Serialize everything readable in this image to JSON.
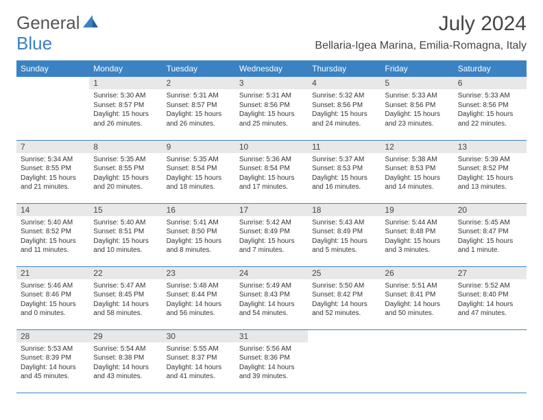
{
  "logo": {
    "general": "General",
    "blue": "Blue"
  },
  "header": {
    "title": "July 2024",
    "location": "Bellaria-Igea Marina, Emilia-Romagna, Italy"
  },
  "days_of_week": [
    "Sunday",
    "Monday",
    "Tuesday",
    "Wednesday",
    "Thursday",
    "Friday",
    "Saturday"
  ],
  "colors": {
    "header_bg": "#3b82c4",
    "day_num_bg": "#e8e8e8",
    "border": "#3b82c4",
    "logo_blue": "#3b7fc4"
  },
  "weeks": [
    [
      null,
      {
        "num": "1",
        "sunrise": "Sunrise: 5:30 AM",
        "sunset": "Sunset: 8:57 PM",
        "daylight": "Daylight: 15 hours and 26 minutes."
      },
      {
        "num": "2",
        "sunrise": "Sunrise: 5:31 AM",
        "sunset": "Sunset: 8:57 PM",
        "daylight": "Daylight: 15 hours and 26 minutes."
      },
      {
        "num": "3",
        "sunrise": "Sunrise: 5:31 AM",
        "sunset": "Sunset: 8:56 PM",
        "daylight": "Daylight: 15 hours and 25 minutes."
      },
      {
        "num": "4",
        "sunrise": "Sunrise: 5:32 AM",
        "sunset": "Sunset: 8:56 PM",
        "daylight": "Daylight: 15 hours and 24 minutes."
      },
      {
        "num": "5",
        "sunrise": "Sunrise: 5:33 AM",
        "sunset": "Sunset: 8:56 PM",
        "daylight": "Daylight: 15 hours and 23 minutes."
      },
      {
        "num": "6",
        "sunrise": "Sunrise: 5:33 AM",
        "sunset": "Sunset: 8:56 PM",
        "daylight": "Daylight: 15 hours and 22 minutes."
      }
    ],
    [
      {
        "num": "7",
        "sunrise": "Sunrise: 5:34 AM",
        "sunset": "Sunset: 8:55 PM",
        "daylight": "Daylight: 15 hours and 21 minutes."
      },
      {
        "num": "8",
        "sunrise": "Sunrise: 5:35 AM",
        "sunset": "Sunset: 8:55 PM",
        "daylight": "Daylight: 15 hours and 20 minutes."
      },
      {
        "num": "9",
        "sunrise": "Sunrise: 5:35 AM",
        "sunset": "Sunset: 8:54 PM",
        "daylight": "Daylight: 15 hours and 18 minutes."
      },
      {
        "num": "10",
        "sunrise": "Sunrise: 5:36 AM",
        "sunset": "Sunset: 8:54 PM",
        "daylight": "Daylight: 15 hours and 17 minutes."
      },
      {
        "num": "11",
        "sunrise": "Sunrise: 5:37 AM",
        "sunset": "Sunset: 8:53 PM",
        "daylight": "Daylight: 15 hours and 16 minutes."
      },
      {
        "num": "12",
        "sunrise": "Sunrise: 5:38 AM",
        "sunset": "Sunset: 8:53 PM",
        "daylight": "Daylight: 15 hours and 14 minutes."
      },
      {
        "num": "13",
        "sunrise": "Sunrise: 5:39 AM",
        "sunset": "Sunset: 8:52 PM",
        "daylight": "Daylight: 15 hours and 13 minutes."
      }
    ],
    [
      {
        "num": "14",
        "sunrise": "Sunrise: 5:40 AM",
        "sunset": "Sunset: 8:52 PM",
        "daylight": "Daylight: 15 hours and 11 minutes."
      },
      {
        "num": "15",
        "sunrise": "Sunrise: 5:40 AM",
        "sunset": "Sunset: 8:51 PM",
        "daylight": "Daylight: 15 hours and 10 minutes."
      },
      {
        "num": "16",
        "sunrise": "Sunrise: 5:41 AM",
        "sunset": "Sunset: 8:50 PM",
        "daylight": "Daylight: 15 hours and 8 minutes."
      },
      {
        "num": "17",
        "sunrise": "Sunrise: 5:42 AM",
        "sunset": "Sunset: 8:49 PM",
        "daylight": "Daylight: 15 hours and 7 minutes."
      },
      {
        "num": "18",
        "sunrise": "Sunrise: 5:43 AM",
        "sunset": "Sunset: 8:49 PM",
        "daylight": "Daylight: 15 hours and 5 minutes."
      },
      {
        "num": "19",
        "sunrise": "Sunrise: 5:44 AM",
        "sunset": "Sunset: 8:48 PM",
        "daylight": "Daylight: 15 hours and 3 minutes."
      },
      {
        "num": "20",
        "sunrise": "Sunrise: 5:45 AM",
        "sunset": "Sunset: 8:47 PM",
        "daylight": "Daylight: 15 hours and 1 minute."
      }
    ],
    [
      {
        "num": "21",
        "sunrise": "Sunrise: 5:46 AM",
        "sunset": "Sunset: 8:46 PM",
        "daylight": "Daylight: 15 hours and 0 minutes."
      },
      {
        "num": "22",
        "sunrise": "Sunrise: 5:47 AM",
        "sunset": "Sunset: 8:45 PM",
        "daylight": "Daylight: 14 hours and 58 minutes."
      },
      {
        "num": "23",
        "sunrise": "Sunrise: 5:48 AM",
        "sunset": "Sunset: 8:44 PM",
        "daylight": "Daylight: 14 hours and 56 minutes."
      },
      {
        "num": "24",
        "sunrise": "Sunrise: 5:49 AM",
        "sunset": "Sunset: 8:43 PM",
        "daylight": "Daylight: 14 hours and 54 minutes."
      },
      {
        "num": "25",
        "sunrise": "Sunrise: 5:50 AM",
        "sunset": "Sunset: 8:42 PM",
        "daylight": "Daylight: 14 hours and 52 minutes."
      },
      {
        "num": "26",
        "sunrise": "Sunrise: 5:51 AM",
        "sunset": "Sunset: 8:41 PM",
        "daylight": "Daylight: 14 hours and 50 minutes."
      },
      {
        "num": "27",
        "sunrise": "Sunrise: 5:52 AM",
        "sunset": "Sunset: 8:40 PM",
        "daylight": "Daylight: 14 hours and 47 minutes."
      }
    ],
    [
      {
        "num": "28",
        "sunrise": "Sunrise: 5:53 AM",
        "sunset": "Sunset: 8:39 PM",
        "daylight": "Daylight: 14 hours and 45 minutes."
      },
      {
        "num": "29",
        "sunrise": "Sunrise: 5:54 AM",
        "sunset": "Sunset: 8:38 PM",
        "daylight": "Daylight: 14 hours and 43 minutes."
      },
      {
        "num": "30",
        "sunrise": "Sunrise: 5:55 AM",
        "sunset": "Sunset: 8:37 PM",
        "daylight": "Daylight: 14 hours and 41 minutes."
      },
      {
        "num": "31",
        "sunrise": "Sunrise: 5:56 AM",
        "sunset": "Sunset: 8:36 PM",
        "daylight": "Daylight: 14 hours and 39 minutes."
      },
      null,
      null,
      null
    ]
  ]
}
